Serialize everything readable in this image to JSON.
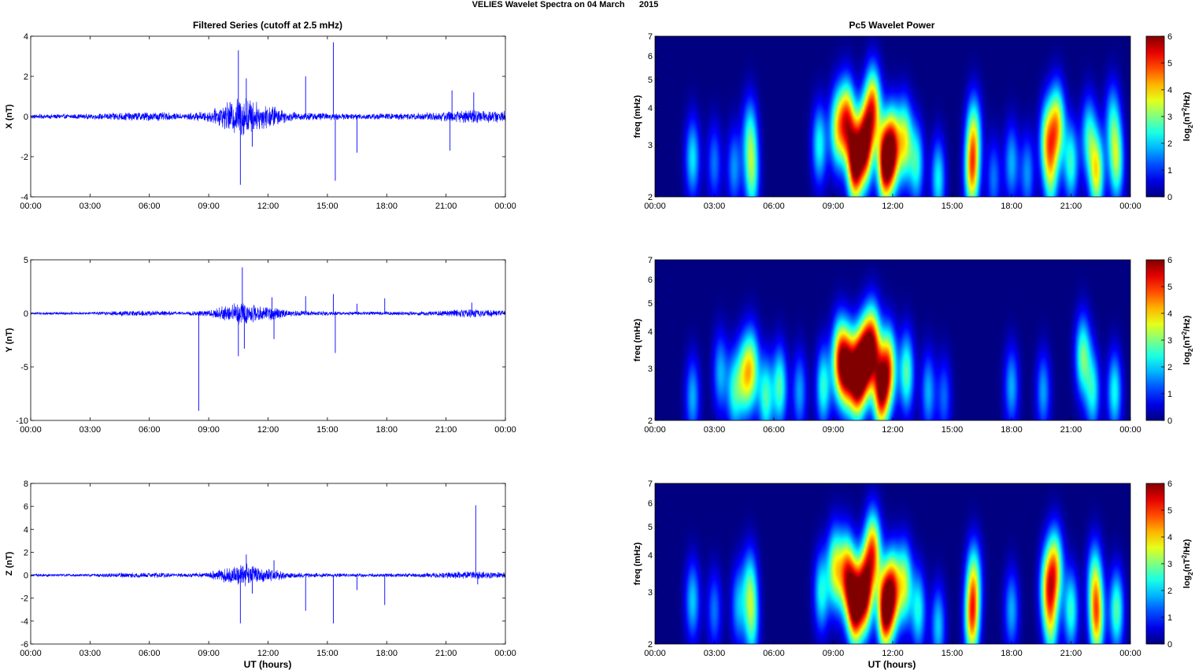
{
  "figure": {
    "suptitle": "VELIES Wavelet Spectra on 04 March      2015",
    "left_title": "Filtered Series (cutoff at 2.5 mHz)",
    "right_title": "Pc5 Wavelet Power",
    "xlabel": "UT (hours)",
    "freq_label": "freq (mHz)",
    "colorbar_label_prefix": "log",
    "colorbar_label_sub": "2",
    "colorbar_label_mid": "(nT",
    "colorbar_label_sup": "2",
    "colorbar_label_suffix": "/Hz)"
  },
  "chart_data": [
    {
      "type": "line",
      "name": "X series",
      "ylabel": "X (nT)",
      "xlim": [
        0,
        24
      ],
      "ylim": [
        -4,
        4
      ],
      "xticks": [
        "00:00",
        "03:00",
        "06:00",
        "09:00",
        "12:00",
        "15:00",
        "18:00",
        "21:00",
        "00:00"
      ],
      "yticks": [
        "-4",
        "-2",
        "0",
        "2",
        "4"
      ],
      "color": "#0000ff",
      "spikes": [
        {
          "x": 10.5,
          "y": 3.3
        },
        {
          "x": 10.6,
          "y": -3.4
        },
        {
          "x": 10.9,
          "y": 1.9
        },
        {
          "x": 11.2,
          "y": -1.5
        },
        {
          "x": 13.9,
          "y": 2.0
        },
        {
          "x": 15.3,
          "y": 3.7
        },
        {
          "x": 15.4,
          "y": -3.2
        },
        {
          "x": 16.5,
          "y": -1.8
        },
        {
          "x": 21.2,
          "y": -1.7
        },
        {
          "x": 21.3,
          "y": 1.3
        },
        {
          "x": 22.4,
          "y": 1.2
        }
      ]
    },
    {
      "type": "line",
      "name": "Y series",
      "ylabel": "Y (nT)",
      "xlim": [
        0,
        24
      ],
      "ylim": [
        -10,
        5
      ],
      "xticks": [
        "00:00",
        "03:00",
        "06:00",
        "09:00",
        "12:00",
        "15:00",
        "18:00",
        "21:00",
        "00:00"
      ],
      "yticks": [
        "-10",
        "-5",
        "0",
        "5"
      ],
      "color": "#0000ff",
      "spikes": [
        {
          "x": 8.5,
          "y": -9.1
        },
        {
          "x": 10.7,
          "y": 4.3
        },
        {
          "x": 10.5,
          "y": -4.0
        },
        {
          "x": 10.8,
          "y": -3.3
        },
        {
          "x": 12.3,
          "y": -2.4
        },
        {
          "x": 12.2,
          "y": 1.5
        },
        {
          "x": 13.9,
          "y": 1.6
        },
        {
          "x": 15.3,
          "y": 1.8
        },
        {
          "x": 15.4,
          "y": -3.7
        },
        {
          "x": 16.5,
          "y": 0.9
        },
        {
          "x": 17.9,
          "y": 1.4
        },
        {
          "x": 22.3,
          "y": 1.0
        }
      ]
    },
    {
      "type": "line",
      "name": "Z series",
      "ylabel": "Z (nT)",
      "xlim": [
        0,
        24
      ],
      "ylim": [
        -6,
        8
      ],
      "xticks": [
        "00:00",
        "03:00",
        "06:00",
        "09:00",
        "12:00",
        "15:00",
        "18:00",
        "21:00",
        "00:00"
      ],
      "yticks": [
        "-6",
        "-4",
        "-2",
        "0",
        "2",
        "4",
        "6",
        "8"
      ],
      "color": "#0000ff",
      "spikes": [
        {
          "x": 10.6,
          "y": -4.2
        },
        {
          "x": 10.9,
          "y": 1.8
        },
        {
          "x": 11.2,
          "y": -1.6
        },
        {
          "x": 12.3,
          "y": 1.3
        },
        {
          "x": 13.9,
          "y": -3.1
        },
        {
          "x": 15.3,
          "y": -4.2
        },
        {
          "x": 16.5,
          "y": -1.3
        },
        {
          "x": 17.9,
          "y": -2.6
        },
        {
          "x": 22.5,
          "y": 6.1
        },
        {
          "x": 22.6,
          "y": -0.8
        }
      ]
    },
    {
      "type": "heatmap",
      "name": "X wavelet power",
      "xlim": [
        0,
        24
      ],
      "ylim": [
        2,
        7
      ],
      "yscale": "log",
      "xticks": [
        "00:00",
        "03:00",
        "06:00",
        "09:00",
        "12:00",
        "15:00",
        "18:00",
        "21:00",
        "00:00"
      ],
      "yticks": [
        "2",
        "3",
        "4",
        "5",
        "6",
        "7"
      ],
      "colorbar_ticks": [
        "0",
        "1",
        "2",
        "3",
        "4",
        "5",
        "6"
      ],
      "clim": [
        0,
        6
      ],
      "blobs": [
        {
          "t": 1.9,
          "f": 2.7,
          "amp": 2.4
        },
        {
          "t": 3.0,
          "f": 2.6,
          "amp": 1.6
        },
        {
          "t": 4.0,
          "f": 2.5,
          "amp": 1.8
        },
        {
          "t": 4.8,
          "f": 3.2,
          "amp": 2.5
        },
        {
          "t": 4.9,
          "f": 2.3,
          "amp": 2.6
        },
        {
          "t": 8.3,
          "f": 3.0,
          "amp": 2.6
        },
        {
          "t": 9.2,
          "f": 3.4,
          "amp": 3.5
        },
        {
          "t": 9.7,
          "f": 3.6,
          "amp": 5.0
        },
        {
          "t": 10.1,
          "f": 2.6,
          "amp": 6.5
        },
        {
          "t": 10.6,
          "f": 3.0,
          "amp": 6.2
        },
        {
          "t": 11.0,
          "f": 4.0,
          "amp": 5.0
        },
        {
          "t": 11.6,
          "f": 2.6,
          "amp": 6.3
        },
        {
          "t": 12.0,
          "f": 2.9,
          "amp": 5.5
        },
        {
          "t": 12.6,
          "f": 3.1,
          "amp": 3.8
        },
        {
          "t": 13.2,
          "f": 2.6,
          "amp": 2.7
        },
        {
          "t": 14.3,
          "f": 2.3,
          "amp": 2.5
        },
        {
          "t": 16.0,
          "f": 2.4,
          "amp": 4.3
        },
        {
          "t": 16.1,
          "f": 3.3,
          "amp": 3.0
        },
        {
          "t": 17.1,
          "f": 2.3,
          "amp": 1.6
        },
        {
          "t": 18.0,
          "f": 2.6,
          "amp": 2.0
        },
        {
          "t": 18.8,
          "f": 2.4,
          "amp": 1.8
        },
        {
          "t": 19.8,
          "f": 3.1,
          "amp": 3.6
        },
        {
          "t": 20.3,
          "f": 3.5,
          "amp": 4.2
        },
        {
          "t": 20.0,
          "f": 2.3,
          "amp": 2.4
        },
        {
          "t": 21.0,
          "f": 2.6,
          "amp": 2.8
        },
        {
          "t": 21.9,
          "f": 3.2,
          "amp": 2.6
        },
        {
          "t": 22.3,
          "f": 2.4,
          "amp": 4.0
        },
        {
          "t": 23.3,
          "f": 2.6,
          "amp": 3.2
        },
        {
          "t": 23.1,
          "f": 3.6,
          "amp": 2.2
        }
      ]
    },
    {
      "type": "heatmap",
      "name": "Y wavelet power",
      "xlim": [
        0,
        24
      ],
      "ylim": [
        2,
        7
      ],
      "yscale": "log",
      "xticks": [
        "00:00",
        "03:00",
        "06:00",
        "09:00",
        "12:00",
        "15:00",
        "18:00",
        "21:00",
        "00:00"
      ],
      "yticks": [
        "2",
        "3",
        "4",
        "5",
        "6",
        "7"
      ],
      "colorbar_ticks": [
        "0",
        "1",
        "2",
        "3",
        "4",
        "5",
        "6"
      ],
      "clim": [
        0,
        6
      ],
      "blobs": [
        {
          "t": 1.9,
          "f": 2.4,
          "amp": 2.0
        },
        {
          "t": 3.3,
          "f": 2.9,
          "amp": 2.0
        },
        {
          "t": 4.0,
          "f": 2.5,
          "amp": 2.5
        },
        {
          "t": 4.5,
          "f": 2.8,
          "amp": 3.0
        },
        {
          "t": 4.9,
          "f": 3.0,
          "amp": 3.3
        },
        {
          "t": 5.6,
          "f": 2.4,
          "amp": 2.9
        },
        {
          "t": 6.3,
          "f": 2.6,
          "amp": 3.0
        },
        {
          "t": 7.3,
          "f": 2.5,
          "amp": 1.9
        },
        {
          "t": 8.5,
          "f": 2.6,
          "amp": 2.8
        },
        {
          "t": 9.3,
          "f": 3.2,
          "amp": 4.6
        },
        {
          "t": 9.7,
          "f": 3.0,
          "amp": 5.5
        },
        {
          "t": 10.2,
          "f": 2.8,
          "amp": 6.5
        },
        {
          "t": 10.6,
          "f": 3.2,
          "amp": 5.8
        },
        {
          "t": 11.0,
          "f": 3.6,
          "amp": 5.0
        },
        {
          "t": 11.4,
          "f": 2.5,
          "amp": 5.6
        },
        {
          "t": 11.8,
          "f": 3.0,
          "amp": 4.8
        },
        {
          "t": 12.7,
          "f": 2.9,
          "amp": 3.1
        },
        {
          "t": 13.8,
          "f": 2.5,
          "amp": 2.0
        },
        {
          "t": 14.6,
          "f": 2.4,
          "amp": 1.5
        },
        {
          "t": 18.0,
          "f": 2.6,
          "amp": 2.0
        },
        {
          "t": 19.6,
          "f": 2.5,
          "amp": 1.9
        },
        {
          "t": 21.6,
          "f": 3.3,
          "amp": 3.2
        },
        {
          "t": 22.1,
          "f": 2.5,
          "amp": 2.5
        },
        {
          "t": 23.2,
          "f": 2.5,
          "amp": 2.6
        }
      ]
    },
    {
      "type": "heatmap",
      "name": "Z wavelet power",
      "xlim": [
        0,
        24
      ],
      "ylim": [
        2,
        7
      ],
      "yscale": "log",
      "xticks": [
        "00:00",
        "03:00",
        "06:00",
        "09:00",
        "12:00",
        "15:00",
        "18:00",
        "21:00",
        "00:00"
      ],
      "yticks": [
        "2",
        "3",
        "4",
        "5",
        "6",
        "7"
      ],
      "colorbar_ticks": [
        "0",
        "1",
        "2",
        "3",
        "4",
        "5",
        "6"
      ],
      "clim": [
        0,
        6
      ],
      "blobs": [
        {
          "t": 1.9,
          "f": 2.8,
          "amp": 2.2
        },
        {
          "t": 3.0,
          "f": 2.6,
          "amp": 1.6
        },
        {
          "t": 4.2,
          "f": 2.7,
          "amp": 1.9
        },
        {
          "t": 4.8,
          "f": 3.1,
          "amp": 2.6
        },
        {
          "t": 4.9,
          "f": 2.3,
          "amp": 2.2
        },
        {
          "t": 8.4,
          "f": 3.0,
          "amp": 2.6
        },
        {
          "t": 9.1,
          "f": 3.6,
          "amp": 3.8
        },
        {
          "t": 9.7,
          "f": 3.4,
          "amp": 5.0
        },
        {
          "t": 10.1,
          "f": 2.7,
          "amp": 6.5
        },
        {
          "t": 10.6,
          "f": 3.0,
          "amp": 6.1
        },
        {
          "t": 11.0,
          "f": 4.1,
          "amp": 5.0
        },
        {
          "t": 11.6,
          "f": 2.6,
          "amp": 6.3
        },
        {
          "t": 12.0,
          "f": 3.0,
          "amp": 5.2
        },
        {
          "t": 12.6,
          "f": 3.2,
          "amp": 3.6
        },
        {
          "t": 13.3,
          "f": 2.6,
          "amp": 2.6
        },
        {
          "t": 14.3,
          "f": 2.3,
          "amp": 2.2
        },
        {
          "t": 16.0,
          "f": 2.4,
          "amp": 4.5
        },
        {
          "t": 16.1,
          "f": 3.3,
          "amp": 3.1
        },
        {
          "t": 18.0,
          "f": 2.6,
          "amp": 2.0
        },
        {
          "t": 19.8,
          "f": 3.1,
          "amp": 3.6
        },
        {
          "t": 20.2,
          "f": 3.6,
          "amp": 4.2
        },
        {
          "t": 20.0,
          "f": 2.3,
          "amp": 2.6
        },
        {
          "t": 21.0,
          "f": 2.6,
          "amp": 2.8
        },
        {
          "t": 22.3,
          "f": 2.4,
          "amp": 4.3
        },
        {
          "t": 22.2,
          "f": 3.3,
          "amp": 2.8
        },
        {
          "t": 23.3,
          "f": 2.6,
          "amp": 3.1
        }
      ]
    }
  ]
}
